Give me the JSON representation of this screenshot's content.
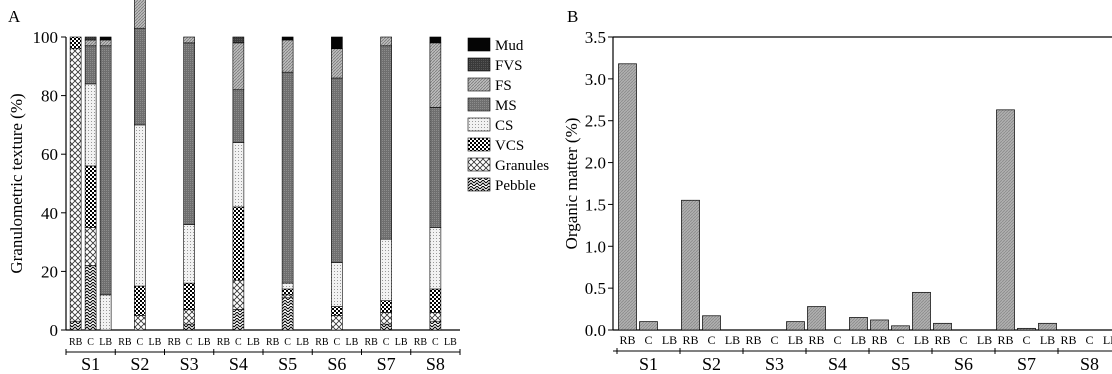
{
  "chart_data": [
    {
      "panel": "A",
      "type": "bar",
      "stacked": true,
      "ylabel": "Granulometric texture (%)",
      "ylim": [
        0,
        100
      ],
      "yticks": [
        0,
        20,
        40,
        60,
        80,
        100
      ],
      "sites": [
        "S1",
        "S2",
        "S3",
        "S4",
        "S5",
        "S6",
        "S7",
        "S8"
      ],
      "positions": [
        "RB",
        "C",
        "LB"
      ],
      "legend": [
        "Mud",
        "FVS",
        "FS",
        "MS",
        "CS",
        "VCS",
        "Granules",
        "Pebble"
      ],
      "legend_placement": "right",
      "series_colors": {
        "Pebble": "#ffffff",
        "Granules": "#e6e6e6",
        "VCS": "#3a3a3a",
        "CS": "#efefef",
        "MS": "#7a7a7a",
        "FS": "#b2b2b2",
        "FVS": "#404040",
        "Mud": "#050505"
      },
      "bars": [
        [
          [
            0,
            0,
            0,
            0,
            0,
            4,
            93,
            3
          ],
          [
            0,
            1,
            2,
            13,
            28,
            21,
            13,
            22
          ],
          [
            1,
            0,
            2,
            85,
            12,
            0,
            0,
            0
          ]
        ],
        [
          [
            0,
            0,
            0,
            0,
            0,
            0,
            0,
            0
          ],
          [
            1,
            10,
            20,
            33,
            55,
            10,
            5,
            0
          ],
          [
            0,
            0,
            0,
            0,
            0,
            0,
            0,
            0
          ]
        ],
        [
          [
            0,
            0,
            0,
            0,
            0,
            0,
            0,
            0
          ],
          [
            0,
            0,
            2,
            62,
            20,
            9,
            5,
            2
          ],
          [
            0,
            0,
            0,
            0,
            0,
            0,
            0,
            0
          ]
        ],
        [
          [
            0,
            0,
            0,
            0,
            0,
            0,
            0,
            0
          ],
          [
            0,
            2,
            16,
            18,
            22,
            25,
            10,
            7
          ],
          [
            0,
            0,
            0,
            0,
            0,
            0,
            0,
            0
          ]
        ],
        [
          [
            0,
            0,
            0,
            0,
            0,
            0,
            0,
            0
          ],
          [
            1,
            0,
            11,
            72,
            2,
            2,
            1,
            11
          ],
          [
            0,
            0,
            0,
            0,
            0,
            0,
            0,
            0
          ]
        ],
        [
          [
            0,
            0,
            0,
            0,
            0,
            0,
            0,
            0
          ],
          [
            4,
            0,
            10,
            63,
            15,
            3,
            5,
            0
          ],
          [
            0,
            0,
            0,
            0,
            0,
            0,
            0,
            0
          ]
        ],
        [
          [
            0,
            0,
            0,
            0,
            0,
            0,
            0,
            0
          ],
          [
            0,
            0,
            3,
            66,
            21,
            4,
            4,
            2
          ],
          [
            0,
            0,
            0,
            0,
            0,
            0,
            0,
            0
          ]
        ],
        [
          [
            0,
            0,
            0,
            0,
            0,
            0,
            0,
            0
          ],
          [
            2,
            0,
            22,
            41,
            21,
            8,
            3,
            3
          ],
          [
            0,
            0,
            0,
            0,
            0,
            0,
            0,
            0
          ]
        ]
      ]
    },
    {
      "panel": "B",
      "type": "bar",
      "ylabel": "Organic matter (%)",
      "ylim": [
        0,
        3.5
      ],
      "yticks": [
        "0.0",
        "0.5",
        "1.0",
        "1.5",
        "2.0",
        "2.5",
        "3.0",
        "3.5"
      ],
      "sites": [
        "S1",
        "S2",
        "S3",
        "S4",
        "S5",
        "S6",
        "S7",
        "S8"
      ],
      "positions": [
        "RB",
        "C",
        "LB"
      ],
      "values": [
        [
          3.18,
          0.1,
          0
        ],
        [
          1.55,
          0.17,
          0
        ],
        [
          0,
          0,
          0.1
        ],
        [
          0.28,
          0,
          0.15
        ],
        [
          0.12,
          0.05,
          0.45
        ],
        [
          0.08,
          0,
          0
        ],
        [
          2.63,
          0.02,
          0.08
        ],
        [
          0,
          0,
          0
        ]
      ],
      "bar_color": "#a8a8a8"
    }
  ]
}
